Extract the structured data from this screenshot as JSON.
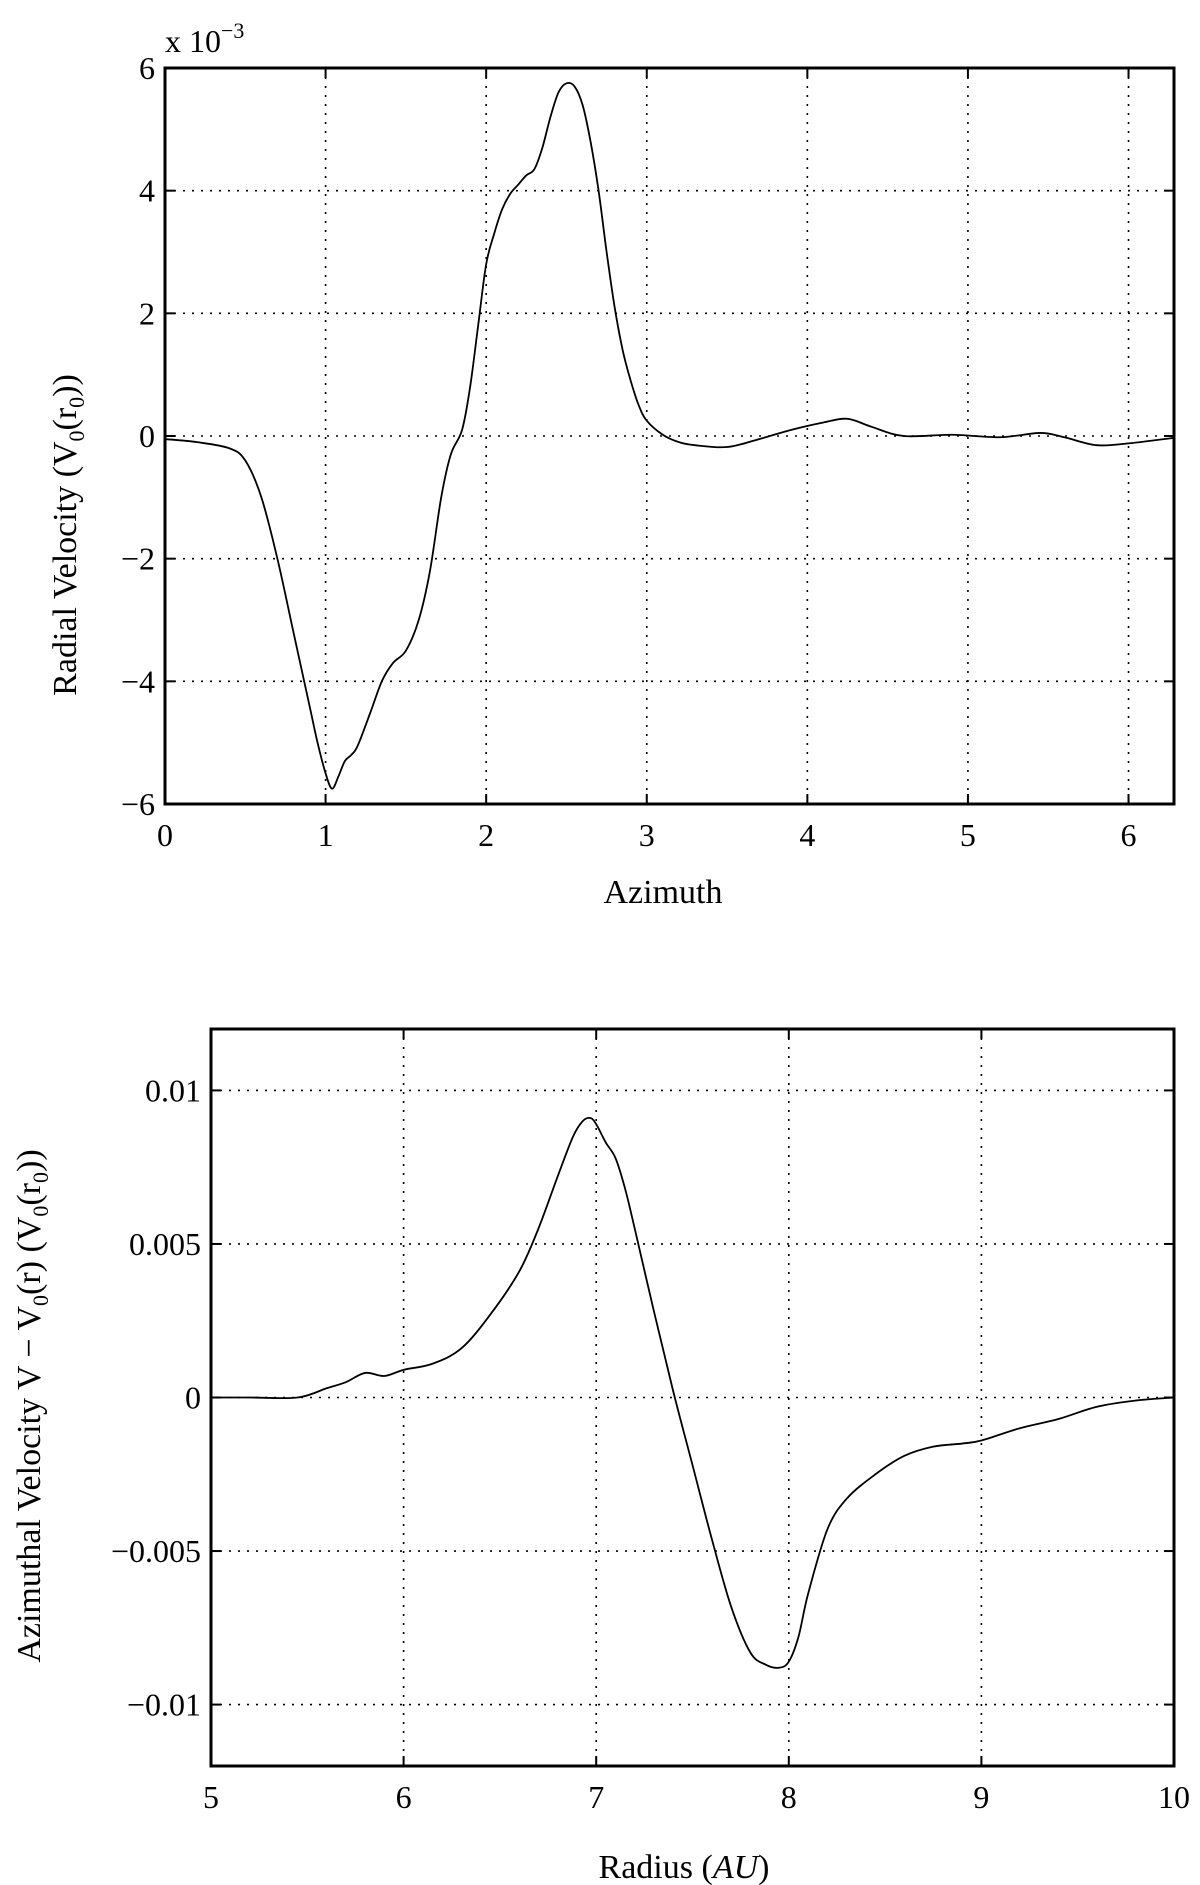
{
  "chart_data": [
    {
      "type": "line",
      "xlabel": "Azimuth",
      "ylabel": "Radial Velocity (V",
      "ylabel_sub1": "0",
      "ylabel_mid": "(r",
      "ylabel_sub2": "0",
      "ylabel_end": "))",
      "exponent_base": "x 10",
      "exponent_power": "−3",
      "xlim": [
        0,
        6.2832
      ],
      "ylim": [
        -6,
        6
      ],
      "xticks": [
        0,
        1,
        2,
        3,
        4,
        5,
        6
      ],
      "xtick_labels": [
        "0",
        "1",
        "2",
        "3",
        "4",
        "5",
        "6"
      ],
      "yticks": [
        -6,
        -4,
        -2,
        0,
        2,
        4,
        6
      ],
      "ytick_labels": [
        "−6",
        "−4",
        "−2",
        "0",
        "2",
        "4",
        "6"
      ],
      "grid": true,
      "series": [
        {
          "x": [
            0,
            0.2,
            0.4,
            0.5,
            0.6,
            0.7,
            0.8,
            0.9,
            0.95,
            1.0,
            1.04,
            1.08,
            1.12,
            1.16,
            1.2,
            1.28,
            1.35,
            1.42,
            1.5,
            1.58,
            1.65,
            1.72,
            1.78,
            1.85,
            1.9,
            1.95,
            2.0,
            2.05,
            2.1,
            2.15,
            2.2,
            2.25,
            2.3,
            2.35,
            2.4,
            2.45,
            2.5,
            2.55,
            2.6,
            2.65,
            2.7,
            2.75,
            2.8,
            2.85,
            2.9,
            2.95,
            3.0,
            3.1,
            3.2,
            3.3,
            3.5,
            3.7,
            3.9,
            4.1,
            4.25,
            4.4,
            4.6,
            4.9,
            5.2,
            5.45,
            5.6,
            5.8,
            6.0,
            6.2832
          ],
          "y": [
            -0.05,
            -0.1,
            -0.2,
            -0.4,
            -1.0,
            -2.0,
            -3.2,
            -4.4,
            -5.0,
            -5.5,
            -5.75,
            -5.55,
            -5.3,
            -5.2,
            -5.05,
            -4.5,
            -4.0,
            -3.7,
            -3.5,
            -3.0,
            -2.2,
            -1.0,
            -0.3,
            0.1,
            0.8,
            1.8,
            2.8,
            3.3,
            3.7,
            3.95,
            4.1,
            4.25,
            4.35,
            4.7,
            5.2,
            5.6,
            5.75,
            5.7,
            5.4,
            4.8,
            4.0,
            3.0,
            2.1,
            1.4,
            0.9,
            0.5,
            0.25,
            0.02,
            -0.1,
            -0.15,
            -0.18,
            -0.05,
            0.1,
            0.22,
            0.28,
            0.15,
            0.0,
            0.02,
            -0.02,
            0.05,
            -0.02,
            -0.15,
            -0.12,
            -0.03
          ]
        }
      ]
    },
    {
      "type": "line",
      "xlabel": "Radius (",
      "xlabel_italic": "AU",
      "xlabel_end": ")",
      "ylabel": "Azimuthal Velocity V − V",
      "ylabel_sub1": "0",
      "ylabel_mid": "(r) (V",
      "ylabel_sub2": "0",
      "ylabel_mid2": "(r",
      "ylabel_sub3": "0",
      "ylabel_end": "))",
      "xlim": [
        5,
        10
      ],
      "ylim": [
        -0.012,
        0.012
      ],
      "xticks": [
        5,
        6,
        7,
        8,
        9,
        10
      ],
      "xtick_labels": [
        "5",
        "6",
        "7",
        "8",
        "9",
        "10"
      ],
      "yticks": [
        -0.01,
        -0.005,
        0,
        0.005,
        0.01
      ],
      "ytick_labels": [
        "−0.01",
        "−0.005",
        "0",
        "0.005",
        "0.01"
      ],
      "grid": true,
      "series": [
        {
          "x": [
            5.0,
            5.2,
            5.45,
            5.6,
            5.7,
            5.8,
            5.9,
            6.0,
            6.15,
            6.3,
            6.45,
            6.6,
            6.7,
            6.8,
            6.88,
            6.93,
            6.97,
            7.0,
            7.05,
            7.1,
            7.15,
            7.2,
            7.3,
            7.4,
            7.5,
            7.6,
            7.7,
            7.8,
            7.88,
            7.95,
            8.0,
            8.05,
            8.1,
            8.2,
            8.3,
            8.45,
            8.6,
            8.75,
            8.9,
            9.0,
            9.2,
            9.4,
            9.6,
            9.8,
            10.0
          ],
          "y": [
            0.0,
            0.0,
            0.0,
            0.0003,
            0.0005,
            0.0008,
            0.0007,
            0.0009,
            0.0011,
            0.0016,
            0.0027,
            0.0041,
            0.0055,
            0.0072,
            0.0085,
            0.009,
            0.0091,
            0.0089,
            0.0083,
            0.0078,
            0.0068,
            0.0055,
            0.0028,
            0.0002,
            -0.0022,
            -0.0046,
            -0.0068,
            -0.0083,
            -0.0087,
            -0.0088,
            -0.0086,
            -0.0078,
            -0.0064,
            -0.0043,
            -0.0033,
            -0.0025,
            -0.0019,
            -0.0016,
            -0.0015,
            -0.0014,
            -0.001,
            -0.0007,
            -0.0003,
            -0.0001,
            0.0
          ]
        }
      ]
    }
  ]
}
